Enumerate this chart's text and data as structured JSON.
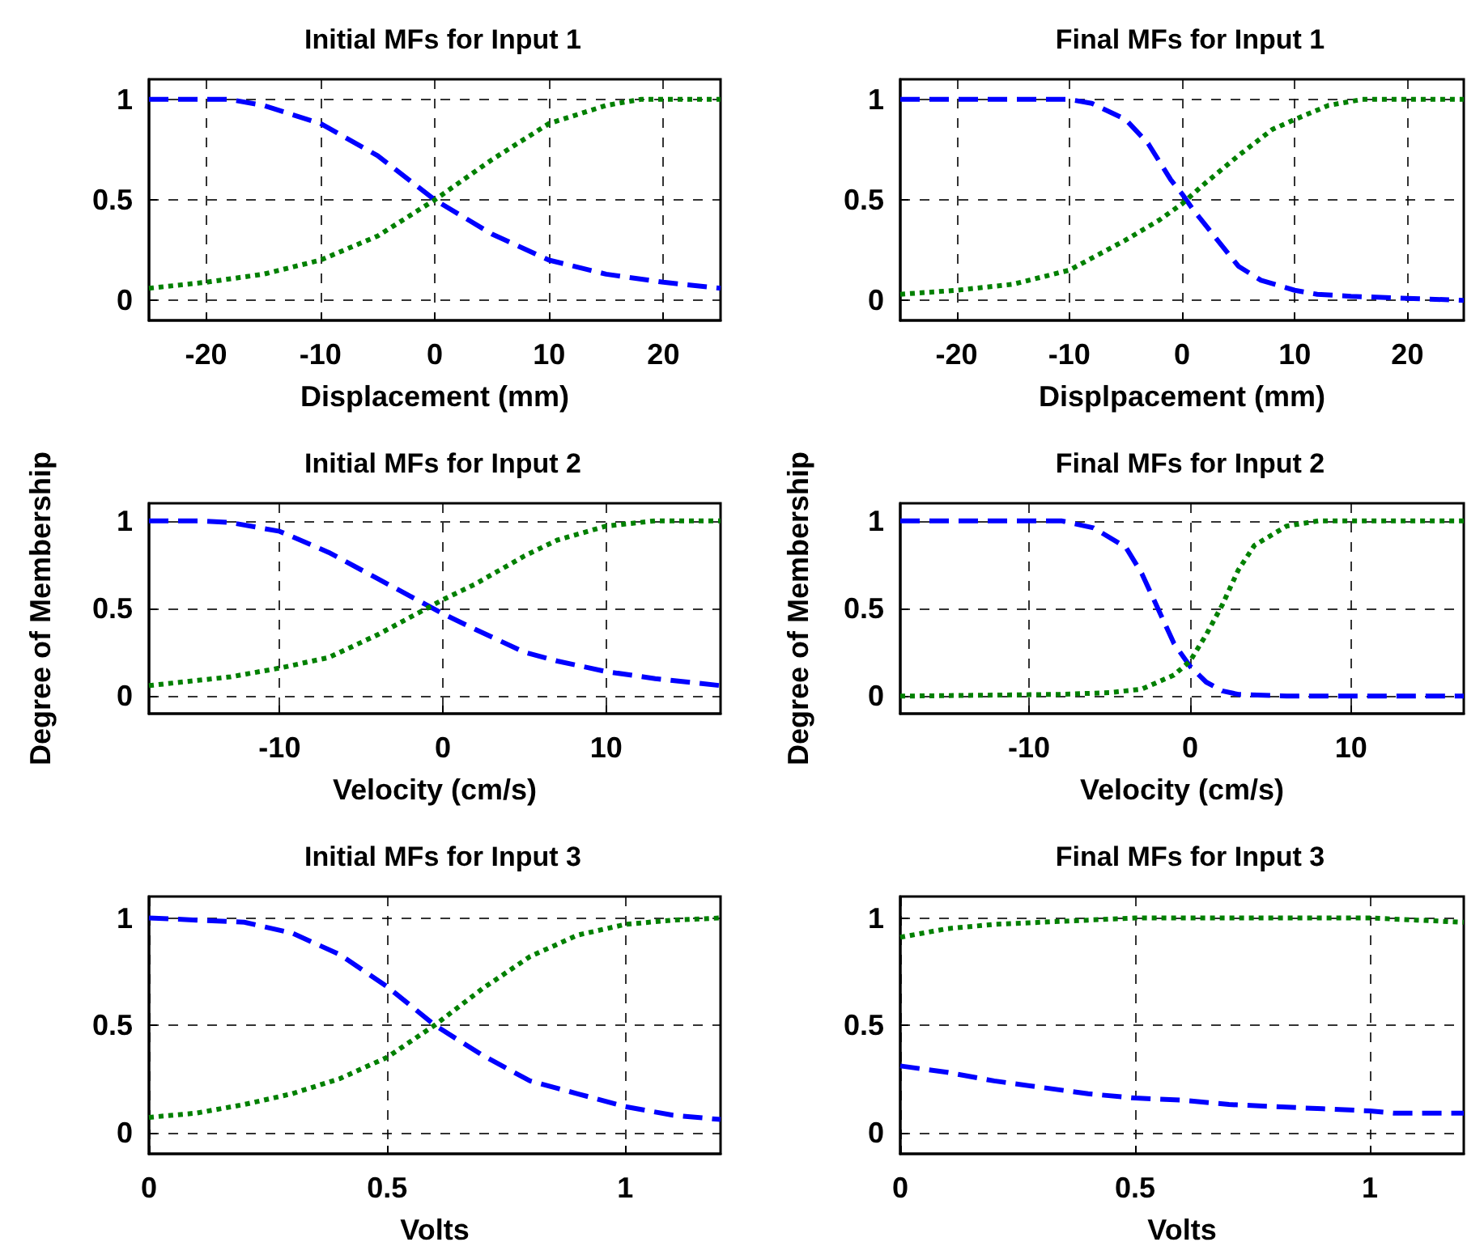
{
  "chart_data": [
    {
      "type": "line",
      "title": "Initial MFs for Input 1",
      "xlabel": "Displacement (mm)",
      "xlim": [
        -25,
        25
      ],
      "xticks": [
        -20,
        -10,
        0,
        10,
        20
      ],
      "ylim": [
        -0.1,
        1.1
      ],
      "yticks": [
        0,
        0.5,
        1
      ],
      "grid": true,
      "marker": "none",
      "series": [
        {
          "color": "#0000ff",
          "line_style": "dashed",
          "x": [
            -25,
            -20,
            -18,
            -15,
            -10,
            -5,
            0,
            5,
            10,
            15,
            20,
            25
          ],
          "values": [
            1,
            1,
            1,
            0.97,
            0.88,
            0.72,
            0.5,
            0.33,
            0.2,
            0.13,
            0.09,
            0.06
          ]
        },
        {
          "color": "#008000",
          "line_style": "dotted",
          "x": [
            -25,
            -20,
            -15,
            -10,
            -5,
            0,
            5,
            10,
            15,
            18,
            20,
            25
          ],
          "values": [
            0.06,
            0.09,
            0.13,
            0.2,
            0.32,
            0.5,
            0.7,
            0.88,
            0.97,
            1,
            1,
            1
          ]
        }
      ]
    },
    {
      "type": "line",
      "title": "Final MFs for Input 1",
      "xlabel": "Displpacement (mm)",
      "xlim": [
        -25,
        25
      ],
      "xticks": [
        -20,
        -10,
        0,
        10,
        20
      ],
      "ylim": [
        -0.1,
        1.1
      ],
      "yticks": [
        0,
        0.5,
        1
      ],
      "grid": true,
      "marker": "none",
      "series": [
        {
          "color": "#0000ff",
          "line_style": "dashed",
          "x": [
            -25,
            -10,
            -8,
            -5,
            -3,
            -1,
            0,
            1,
            3,
            5,
            7,
            10,
            12,
            15,
            20,
            25
          ],
          "values": [
            1,
            1,
            0.98,
            0.9,
            0.78,
            0.6,
            0.53,
            0.45,
            0.31,
            0.17,
            0.1,
            0.05,
            0.03,
            0.02,
            0.01,
            0
          ]
        },
        {
          "color": "#008000",
          "line_style": "dotted",
          "x": [
            -25,
            -20,
            -15,
            -10,
            -5,
            -2,
            0,
            2,
            5,
            8,
            10,
            13,
            16,
            25
          ],
          "values": [
            0.03,
            0.05,
            0.08,
            0.15,
            0.3,
            0.4,
            0.48,
            0.58,
            0.72,
            0.85,
            0.9,
            0.97,
            1,
            1
          ]
        }
      ]
    },
    {
      "type": "line",
      "title": "Initial MFs for Input 2",
      "xlabel": "Velocity (cm/s)",
      "ylabel": "Degree of Membership",
      "xlim": [
        -18,
        17
      ],
      "xticks": [
        -10,
        0,
        10
      ],
      "ylim": [
        -0.1,
        1.1
      ],
      "yticks": [
        0,
        0.5,
        1
      ],
      "grid": true,
      "marker": "none",
      "series": [
        {
          "color": "#0000ff",
          "line_style": "dashed",
          "x": [
            -18,
            -15,
            -13,
            -10,
            -7,
            -4,
            -1,
            0,
            2,
            5,
            7,
            10,
            13,
            17
          ],
          "values": [
            1,
            1,
            0.99,
            0.94,
            0.82,
            0.67,
            0.52,
            0.47,
            0.38,
            0.25,
            0.2,
            0.14,
            0.1,
            0.06
          ]
        },
        {
          "color": "#008000",
          "line_style": "dotted",
          "x": [
            -18,
            -15,
            -13,
            -10,
            -7,
            -4,
            -1,
            0,
            2,
            5,
            7,
            10,
            13,
            17
          ],
          "values": [
            0.06,
            0.09,
            0.11,
            0.16,
            0.22,
            0.35,
            0.5,
            0.55,
            0.64,
            0.8,
            0.89,
            0.97,
            1,
            1
          ]
        }
      ]
    },
    {
      "type": "line",
      "title": "Final MFs for Input 2",
      "xlabel": "Velocity (cm/s)",
      "ylabel": "Degree of Membership",
      "xlim": [
        -18,
        17
      ],
      "xticks": [
        -10,
        0,
        10
      ],
      "ylim": [
        -0.1,
        1.1
      ],
      "yticks": [
        0,
        0.5,
        1
      ],
      "grid": true,
      "marker": "none",
      "series": [
        {
          "color": "#0000ff",
          "line_style": "dashed",
          "x": [
            -18,
            -8,
            -6,
            -4,
            -3,
            -2,
            -1,
            0,
            1,
            2,
            3,
            6,
            17
          ],
          "values": [
            1,
            1,
            0.96,
            0.85,
            0.7,
            0.5,
            0.3,
            0.17,
            0.08,
            0.03,
            0.01,
            0,
            0
          ]
        },
        {
          "color": "#008000",
          "line_style": "dotted",
          "x": [
            -18,
            -8,
            -5,
            -3,
            -1,
            0,
            1,
            2,
            3,
            4,
            6,
            8,
            17
          ],
          "values": [
            0,
            0.01,
            0.02,
            0.04,
            0.12,
            0.2,
            0.35,
            0.52,
            0.72,
            0.86,
            0.97,
            1,
            1
          ]
        }
      ]
    },
    {
      "type": "line",
      "title": "Initial MFs for Input 3",
      "xlabel": "Volts",
      "xlim": [
        0,
        1.2
      ],
      "xticks": [
        0,
        0.5,
        1
      ],
      "ylim": [
        -0.1,
        1.1
      ],
      "yticks": [
        0,
        0.5,
        1
      ],
      "grid": true,
      "marker": "none",
      "series": [
        {
          "color": "#0000ff",
          "line_style": "dashed",
          "x": [
            0,
            0.1,
            0.2,
            0.3,
            0.4,
            0.5,
            0.6,
            0.7,
            0.8,
            0.9,
            1,
            1.1,
            1.2
          ],
          "values": [
            1,
            0.99,
            0.98,
            0.93,
            0.83,
            0.68,
            0.5,
            0.36,
            0.24,
            0.18,
            0.12,
            0.08,
            0.06
          ]
        },
        {
          "color": "#008000",
          "line_style": "dotted",
          "x": [
            0,
            0.1,
            0.2,
            0.3,
            0.4,
            0.5,
            0.6,
            0.7,
            0.8,
            0.9,
            1,
            1.1,
            1.2
          ],
          "values": [
            0.07,
            0.09,
            0.13,
            0.18,
            0.25,
            0.35,
            0.5,
            0.67,
            0.82,
            0.92,
            0.97,
            0.99,
            1
          ]
        }
      ]
    },
    {
      "type": "line",
      "title": "Final MFs for Input 3",
      "xlabel": "Volts",
      "xlim": [
        0,
        1.2
      ],
      "xticks": [
        0,
        0.5,
        1
      ],
      "ylim": [
        -0.1,
        1.1
      ],
      "yticks": [
        0,
        0.5,
        1
      ],
      "grid": true,
      "marker": "none",
      "series": [
        {
          "color": "#0000ff",
          "line_style": "dashed",
          "x": [
            0,
            0.1,
            0.2,
            0.3,
            0.4,
            0.5,
            0.6,
            0.7,
            0.8,
            0.9,
            1,
            1.05,
            1.2
          ],
          "values": [
            0.31,
            0.28,
            0.24,
            0.21,
            0.18,
            0.16,
            0.15,
            0.13,
            0.12,
            0.11,
            0.1,
            0.09,
            0.09
          ]
        },
        {
          "color": "#008000",
          "line_style": "dotted",
          "x": [
            0,
            0.1,
            0.2,
            0.3,
            0.4,
            0.5,
            1,
            1.1,
            1.2
          ],
          "values": [
            0.91,
            0.95,
            0.97,
            0.98,
            0.99,
            1,
            1,
            0.99,
            0.98
          ]
        }
      ]
    }
  ]
}
